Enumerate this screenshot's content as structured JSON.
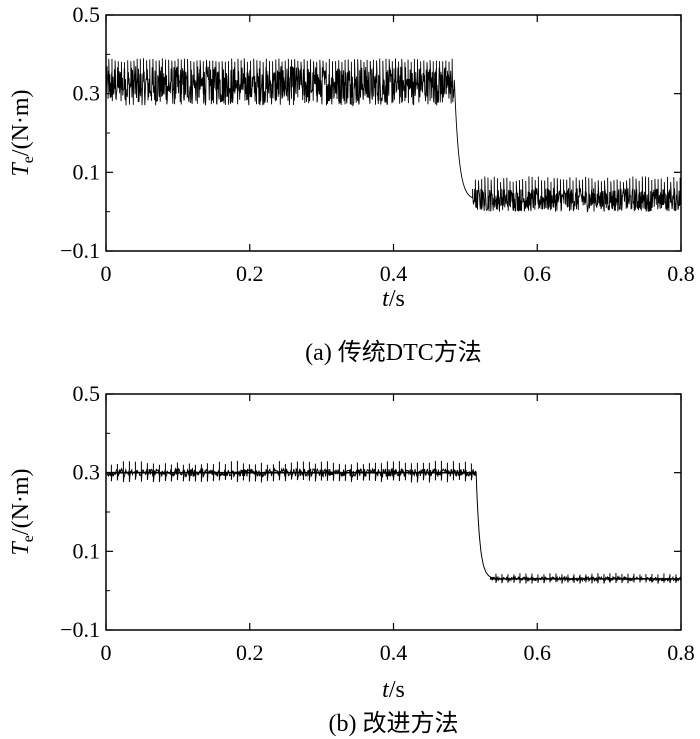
{
  "chart_data": [
    {
      "type": "line",
      "caption": "(a) 传统DTC方法",
      "xlabel_var": "t",
      "xlabel_unit": "/s",
      "ylabel_var": "T",
      "ylabel_sub": "e",
      "ylabel_unit": "/(N·m)",
      "xlim": [
        0,
        0.8
      ],
      "ylim": [
        -0.1,
        0.5
      ],
      "xticks": [
        0,
        0.2,
        0.4,
        0.6,
        0.8
      ],
      "xtick_labels": [
        "0",
        "0.2",
        "0.4",
        "0.6",
        "0.8"
      ],
      "yticks": [
        -0.1,
        0.1,
        0.3,
        0.5
      ],
      "ytick_labels": [
        "−0.1",
        "0.1",
        "0.3",
        "0.5"
      ],
      "grid": false,
      "series": [
        {
          "segments": [
            {
              "x0": 0.0,
              "x1": 0.485,
              "mean": 0.32,
              "band_low": 0.27,
              "band_high": 0.37,
              "spike_high": 0.39
            },
            {
              "x0": 0.485,
              "x1": 0.51,
              "from": 0.32,
              "to": 0.03
            },
            {
              "x0": 0.51,
              "x1": 0.8,
              "mean": 0.03,
              "band_low": 0.0,
              "band_high": 0.06,
              "spike_high": 0.09
            }
          ]
        }
      ]
    },
    {
      "type": "line",
      "caption": "(b) 改进方法",
      "xlabel_var": "t",
      "xlabel_unit": "/s",
      "ylabel_var": "T",
      "ylabel_sub": "e",
      "ylabel_unit": "/(N·m)",
      "xlim": [
        0,
        0.8
      ],
      "ylim": [
        -0.1,
        0.5
      ],
      "xticks": [
        0,
        0.2,
        0.4,
        0.6,
        0.8
      ],
      "xtick_labels": [
        "0",
        "0.2",
        "0.4",
        "0.6",
        "0.8"
      ],
      "yticks": [
        -0.1,
        0.1,
        0.3,
        0.5
      ],
      "ytick_labels": [
        "−0.1",
        "0.1",
        "0.3",
        "0.5"
      ],
      "grid": false,
      "series": [
        {
          "segments": [
            {
              "x0": 0.0,
              "x1": 0.515,
              "mean": 0.3,
              "band_low": 0.29,
              "band_high": 0.31,
              "spike_high": 0.33,
              "spike_low": 0.275
            },
            {
              "x0": 0.515,
              "x1": 0.535,
              "from": 0.3,
              "to": 0.03
            },
            {
              "x0": 0.535,
              "x1": 0.8,
              "mean": 0.03,
              "band_low": 0.025,
              "band_high": 0.035,
              "spike_high": 0.045,
              "spike_low": 0.018
            }
          ]
        }
      ]
    }
  ]
}
